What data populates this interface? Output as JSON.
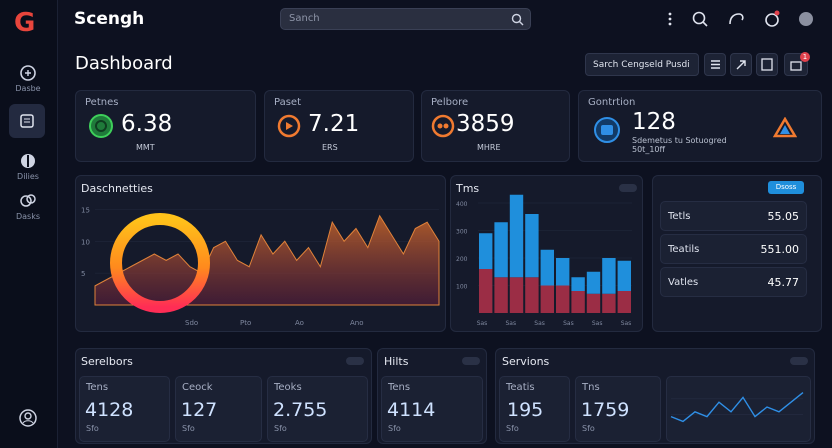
{
  "app": {
    "logo": "G",
    "title": "Scengh",
    "search_placeholder": "Sanch"
  },
  "sidebar": {
    "items": [
      "Dasbe",
      "Dilies",
      "Dasks"
    ]
  },
  "header": {
    "title": "Dashboard",
    "button": "Sarch Cengseld Pusdi",
    "badge": "1"
  },
  "stats": [
    {
      "label": "Petnes",
      "value": "6.38",
      "unit": "MMT"
    },
    {
      "label": "Paset",
      "value": "7.21",
      "unit": "ERS"
    },
    {
      "label": "Pelbore",
      "value": "3859",
      "unit": "MHRE"
    },
    {
      "label": "Gontrtion",
      "value": "128",
      "unit": "Sdemetus tu Sotuogred 50t_10ff"
    }
  ],
  "area_chart": {
    "title": "Daschnetties",
    "values": [
      3,
      4,
      5,
      6,
      7,
      8,
      7,
      8,
      6,
      5,
      9,
      10,
      7,
      6,
      11,
      8,
      10,
      7,
      9,
      6,
      13,
      10,
      12,
      9,
      14,
      11,
      8,
      12,
      13,
      10
    ],
    "ylim": [
      0,
      16
    ],
    "yticks": [
      5,
      10,
      15
    ],
    "x_labels": [
      "Sdo",
      "Pto",
      "Ao",
      "Ano"
    ]
  },
  "bar_chart": {
    "title": "Tms",
    "series": [
      {
        "color": "#9b2d45",
        "values": [
          160,
          130,
          130,
          130,
          100,
          100,
          80,
          70,
          70,
          80
        ]
      },
      {
        "color": "#1f8fdc",
        "values": [
          130,
          200,
          300,
          230,
          130,
          100,
          50,
          80,
          130,
          110
        ]
      }
    ],
    "ylim": [
      0,
      400
    ],
    "yticks": [
      100,
      200,
      300,
      400
    ],
    "x_labels": [
      "Sas",
      "Sas",
      "Sas",
      "Sas",
      "Sas",
      "Sas"
    ]
  },
  "side_panel": {
    "button": "Dsoss",
    "rows": [
      {
        "label": "Tetls",
        "value": "55.05"
      },
      {
        "label": "Teatils",
        "value": "551.00"
      },
      {
        "label": "Vatles",
        "value": "45.77"
      }
    ]
  },
  "bottom": {
    "serelbors": {
      "title": "Serelbors",
      "cards": [
        {
          "label": "Tens",
          "value": "4128",
          "note": "Sfo"
        },
        {
          "label": "Ceock",
          "value": "127",
          "note": "Sfo"
        },
        {
          "label": "Teoks",
          "value": "2.755",
          "note": "Sfo"
        }
      ]
    },
    "hilts": {
      "title": "Hilts",
      "cards": [
        {
          "label": "Tens",
          "value": "4114",
          "note": "Sfo"
        }
      ]
    },
    "servions": {
      "title": "Servions",
      "cards": [
        {
          "label": "Teatis",
          "value": "195",
          "note": "Sfo"
        },
        {
          "label": "Tns",
          "value": "1759",
          "note": "Sfo"
        }
      ],
      "line": {
        "color": "#2f8fe6",
        "values": [
          3,
          2,
          4,
          3,
          6,
          4,
          7,
          3,
          5,
          4,
          6,
          8
        ],
        "ylim": [
          0,
          10
        ]
      }
    }
  }
}
